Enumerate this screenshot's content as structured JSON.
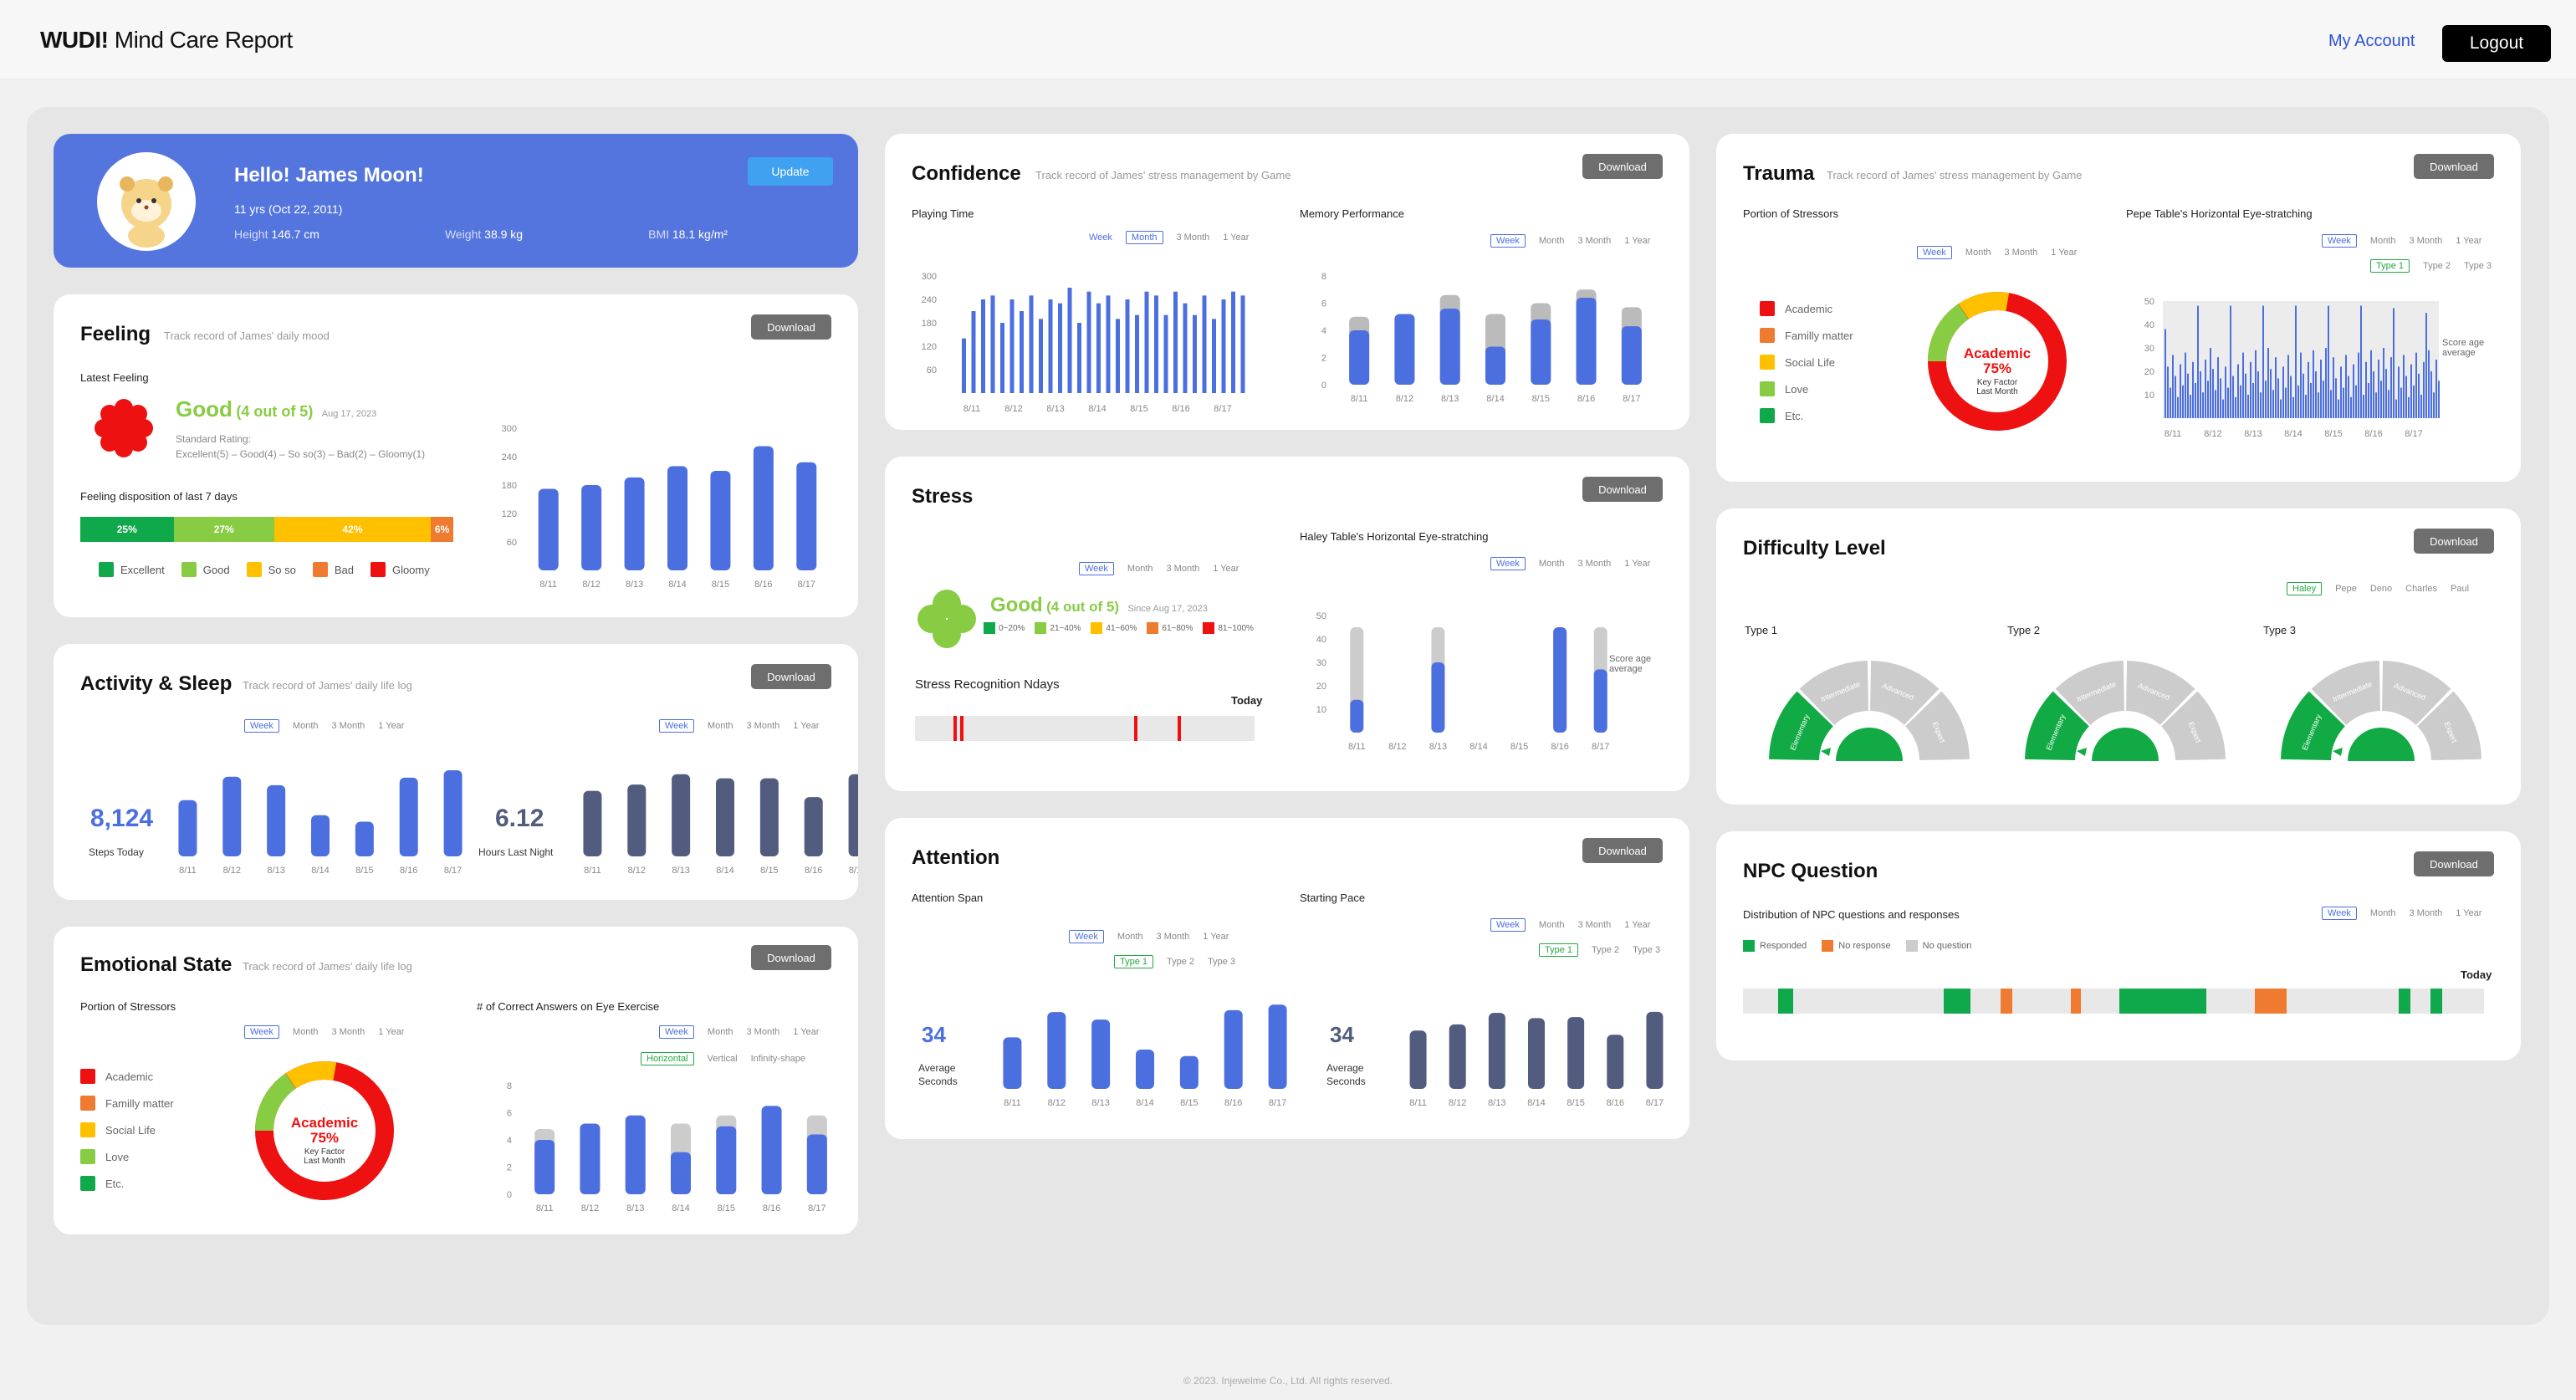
{
  "app": {
    "brand_bold": "WUDI!",
    "brand_rest": "Mind Care Report",
    "my_account": "My Account",
    "logout": "Logout",
    "footer": "© 2023. Injewelme Co., Ltd. All rights reserved."
  },
  "colors": {
    "accent": "#4c6fe0",
    "navy": "#525c7e",
    "excellent": "#0fa84a",
    "good": "#88cc44",
    "soso": "#ffc000",
    "bad": "#ee7b30",
    "gloomy": "#ee1111"
  },
  "common": {
    "download": "Download",
    "periods": [
      "Week",
      "Month",
      "3 Month",
      "1 Year"
    ],
    "days": [
      "8/11",
      "8/12",
      "8/13",
      "8/14",
      "8/15",
      "8/16",
      "8/17"
    ]
  },
  "profile": {
    "greeting": "Hello! James Moon!",
    "update": "Update",
    "age": "11 yrs (Oct 22, 2011)",
    "height_label": "Height",
    "height": "146.7 cm",
    "weight_label": "Weight",
    "weight": "38.9 kg",
    "bmi_label": "BMI",
    "bmi": "18.1 kg/m²"
  },
  "feeling": {
    "title": "Feeling",
    "subtitle": "Track record of James' daily mood",
    "latest_label": "Latest Feeling",
    "rating": "Good",
    "rating_detail": "(4 out of 5)",
    "date": "Aug 17, 2023",
    "standard_label": "Standard Rating:",
    "standard_scale": "Excellent(5) – Good(4) – So so(3) – Bad(2) – Gloomy(1)",
    "disposition_label": "Feeling disposition of last 7 days",
    "bar": [
      {
        "label": "25%",
        "pct": 25,
        "color": "#0fa84a"
      },
      {
        "label": "27%",
        "pct": 27,
        "color": "#88cc44"
      },
      {
        "label": "42%",
        "pct": 42,
        "color": "#ffc000"
      },
      {
        "label": "6%",
        "pct": 6,
        "color": "#ee7b30"
      }
    ],
    "legend": [
      {
        "name": "Excellent",
        "color": "#0fa84a"
      },
      {
        "name": "Good",
        "color": "#88cc44"
      },
      {
        "name": "So so",
        "color": "#ffc000"
      },
      {
        "name": "Bad",
        "color": "#ee7b30"
      },
      {
        "name": "Gloomy",
        "color": "#ee1111"
      }
    ],
    "yticks": [
      "300",
      "240",
      "180",
      "120",
      "60"
    ]
  },
  "activity": {
    "title": "Activity & Sleep",
    "subtitle": "Track record of James' daily life log",
    "steps_value": "8,124",
    "steps_label": "Steps Today",
    "sleep_value": "6.12",
    "sleep_label": "Hours Last Night"
  },
  "emotional": {
    "title": "Emotional State",
    "subtitle": "Track record of James' daily life log",
    "left_label": "Portion of Stressors",
    "right_label": "# of Correct Answers on Eye Exercise",
    "stressors": [
      {
        "name": "Academic",
        "color": "#ee1111"
      },
      {
        "name": "Familly matter",
        "color": "#ee7b30"
      },
      {
        "name": "Social Life",
        "color": "#ffc000"
      },
      {
        "name": "Love",
        "color": "#88cc44"
      },
      {
        "name": "Etc.",
        "color": "#0fa84a"
      }
    ],
    "donut_main": "Academic",
    "donut_pct": "75%",
    "donut_sub1": "Key Factor",
    "donut_sub2": "Last Month",
    "types": [
      "Horizontal",
      "Vertical",
      "Infinity-shape"
    ],
    "yticks": [
      "8",
      "6",
      "4",
      "2",
      "0"
    ]
  },
  "confidence": {
    "title": "Confidence",
    "subtitle": "Track record of James' stress management by Game",
    "left_label": "Playing Time",
    "right_label": "Memory Performance",
    "yticks_left": [
      "300",
      "240",
      "180",
      "120",
      "60"
    ],
    "yticks_right": [
      "8",
      "6",
      "4",
      "2",
      "0"
    ]
  },
  "stress": {
    "title": "Stress",
    "rating": "Good",
    "rating_detail": "(4 out of 5)",
    "since": "Since Aug 17, 2023",
    "ranges": [
      {
        "name": "0~20%",
        "color": "#0fa84a"
      },
      {
        "name": "21~40%",
        "color": "#88cc44"
      },
      {
        "name": "41~60%",
        "color": "#ffc000"
      },
      {
        "name": "61~80%",
        "color": "#ee7b30"
      },
      {
        "name": "81~100%",
        "color": "#ee1111"
      }
    ],
    "recog_label": "Stress Recognition Ndays",
    "today": "Today",
    "right_label": "Haley Table's Horizontal Eye-stratching",
    "yticks": [
      "50",
      "40",
      "30",
      "20",
      "10"
    ],
    "score_avg": "Score age average"
  },
  "attention": {
    "title": "Attention",
    "left_label": "Attention Span",
    "right_label": "Starting Pace",
    "types": [
      "Type 1",
      "Type 2",
      "Type 3"
    ],
    "left_value": "34",
    "left_unit1": "Average",
    "left_unit2": "Seconds",
    "right_value": "34",
    "right_unit1": "Average",
    "right_unit2": "Seconds"
  },
  "trauma": {
    "title": "Trauma",
    "subtitle": "Track record of James' stress management by Game",
    "left_label": "Portion of Stressors",
    "right_label": "Pepe Table's Horizontal Eye-stratching",
    "yticks": [
      "50",
      "40",
      "30",
      "20",
      "10"
    ],
    "score_avg": "Score age average"
  },
  "difficulty": {
    "title": "Difficulty Level",
    "players": [
      "Haley",
      "Pepe",
      "Deno",
      "Charles",
      "Paul"
    ],
    "types": [
      "Type 1",
      "Type 2",
      "Type 3"
    ],
    "segments": [
      "Elementary",
      "Intermediate",
      "Advanced",
      "Expert"
    ]
  },
  "npc": {
    "title": "NPC Question",
    "label": "Distribution of NPC questions and responses",
    "legend": [
      {
        "name": "Responded",
        "color": "#0fa84a"
      },
      {
        "name": "No response",
        "color": "#ee7b30"
      },
      {
        "name": "No question",
        "color": "#cccccc"
      }
    ],
    "today": "Today"
  },
  "chart_data": [
    {
      "type": "bar",
      "title": "Feeling",
      "categories": [
        "8/11",
        "8/12",
        "8/13",
        "8/14",
        "8/15",
        "8/16",
        "8/17"
      ],
      "values": [
        172,
        180,
        196,
        220,
        210,
        262,
        228
      ],
      "ylim": [
        0,
        300
      ]
    },
    {
      "type": "bar",
      "title": "Steps",
      "categories": [
        "8/11",
        "8/12",
        "8/13",
        "8/14",
        "8/15",
        "8/16",
        "8/17"
      ],
      "values": [
        6,
        8.5,
        7.6,
        4.4,
        3.7,
        8.4,
        9.2
      ]
    },
    {
      "type": "bar",
      "title": "Sleep",
      "categories": [
        "8/11",
        "8/12",
        "8/13",
        "8/14",
        "8/15",
        "8/16",
        "8/17"
      ],
      "values": [
        6.3,
        6.9,
        7.9,
        7.5,
        7.5,
        5.7,
        7.9
      ]
    },
    {
      "type": "bar",
      "title": "Memory Performance",
      "categories": [
        "8/11",
        "8/12",
        "8/13",
        "8/14",
        "8/15",
        "8/16",
        "8/17"
      ],
      "series": [
        {
          "values": [
            4,
            5.2,
            5.6,
            2.8,
            4.8,
            6.4,
            4.3
          ]
        },
        {
          "values": [
            5,
            5.2,
            6.6,
            5.2,
            6,
            7,
            5.7
          ]
        }
      ],
      "ylim": [
        0,
        8
      ]
    },
    {
      "type": "bar",
      "title": "Haley Table's Horizontal Eye-stratching",
      "categories": [
        "8/11",
        "8/12",
        "8/13",
        "8/14",
        "8/15",
        "8/16",
        "8/17"
      ],
      "series": [
        {
          "values": [
            14,
            0,
            30,
            0,
            0,
            45,
            27
          ]
        },
        {
          "values": [
            45,
            0,
            45,
            0,
            0,
            45,
            45
          ]
        }
      ],
      "ylim": [
        0,
        50
      ]
    },
    {
      "type": "bar",
      "title": "Correct Answers on Eye Exercise",
      "categories": [
        "8/11",
        "8/12",
        "8/13",
        "8/14",
        "8/15",
        "8/16",
        "8/17"
      ],
      "series": [
        {
          "values": [
            4,
            5.2,
            5.8,
            3.1,
            5,
            6.5,
            4.4
          ]
        },
        {
          "values": [
            4.8,
            5.2,
            5.8,
            5.2,
            5.8,
            6.5,
            5.8
          ]
        }
      ],
      "ylim": [
        0,
        8
      ]
    },
    {
      "type": "bar",
      "title": "Attention Span",
      "categories": [
        "8/11",
        "8/12",
        "8/13",
        "8/14",
        "8/15",
        "8/16",
        "8/17"
      ],
      "values": [
        5.5,
        8.2,
        7.4,
        4.2,
        3.5,
        8.4,
        9
      ]
    },
    {
      "type": "bar",
      "title": "Starting Pace",
      "categories": [
        "8/11",
        "8/12",
        "8/13",
        "8/14",
        "8/15",
        "8/16",
        "8/17"
      ],
      "values": [
        5.6,
        6.2,
        7.3,
        6.8,
        6.9,
        5.2,
        7.4
      ]
    }
  ]
}
